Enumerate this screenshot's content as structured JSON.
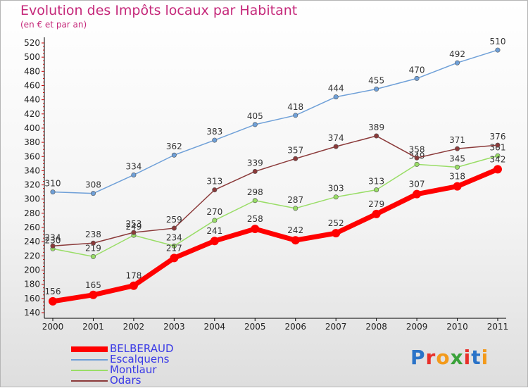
{
  "title": "Evolution des Impôts locaux par Habitant",
  "subtitle": "(en € et par an)",
  "logo": "Proxiti",
  "chart_data": {
    "type": "line",
    "x": [
      "2000",
      "2001",
      "2002",
      "2003",
      "2004",
      "2005",
      "2006",
      "2007",
      "2008",
      "2009",
      "2010",
      "2011"
    ],
    "ylim": [
      140,
      520
    ],
    "yticks": [
      140,
      160,
      180,
      200,
      220,
      240,
      260,
      280,
      300,
      320,
      340,
      360,
      380,
      400,
      420,
      440,
      460,
      480,
      500,
      520
    ],
    "grid": false,
    "legend": "bottom-left",
    "series": [
      {
        "name": "BELBERAUD",
        "color": "#ff0000",
        "values": [
          156,
          165,
          178,
          217,
          241,
          258,
          242,
          252,
          279,
          307,
          318,
          342
        ]
      },
      {
        "name": "Escalquens",
        "color": "#6fa0d8",
        "values": [
          310,
          308,
          334,
          362,
          383,
          405,
          418,
          444,
          455,
          470,
          492,
          510
        ]
      },
      {
        "name": "Montlaur",
        "color": "#99dd66",
        "values": [
          230,
          219,
          249,
          234,
          270,
          298,
          287,
          303,
          313,
          349,
          345,
          361
        ]
      },
      {
        "name": "Odars",
        "color": "#8b3a3a",
        "values": [
          234,
          238,
          253,
          259,
          313,
          339,
          357,
          374,
          389,
          358,
          371,
          376
        ]
      }
    ]
  }
}
